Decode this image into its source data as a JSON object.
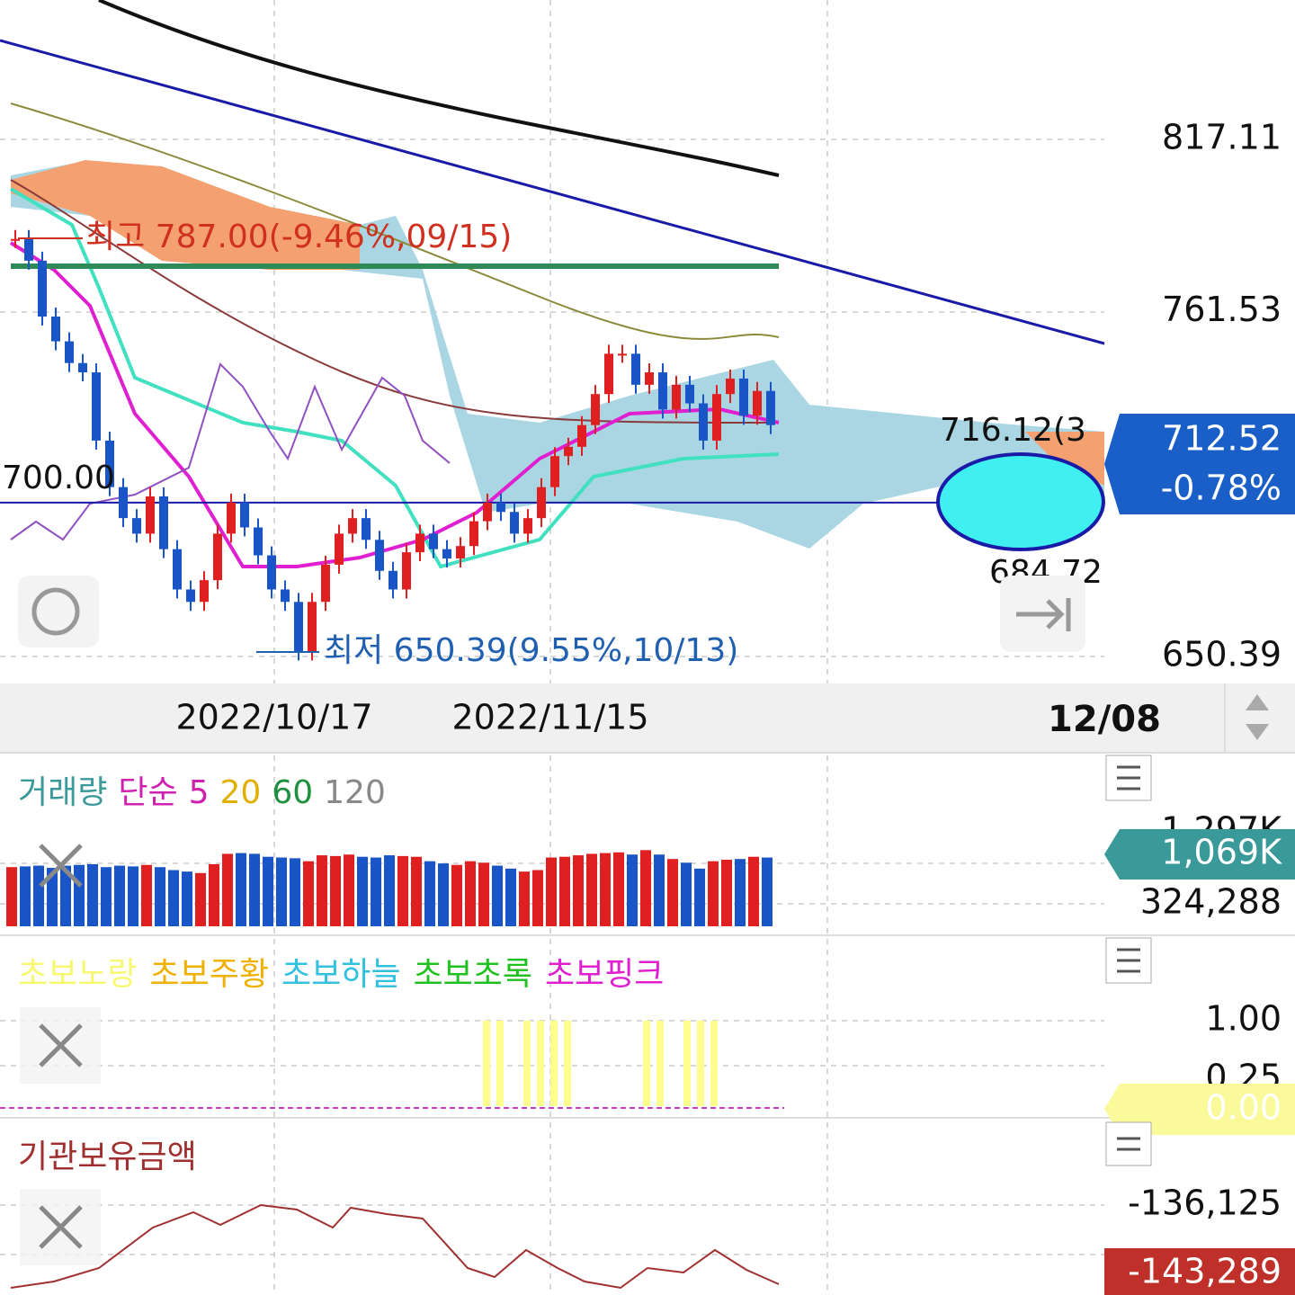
{
  "price_panel": {
    "yticks": [
      817.11,
      761.53,
      650.39
    ],
    "level_line": {
      "value": 700,
      "label": "700.00"
    },
    "high_note": "최고 787.00(-9.46%,09/15)",
    "low_note": "최저 650.39(9.55%,10/13)",
    "cloud_top_label": "716.12(3",
    "cloud_bottom_label": "684.72",
    "current": {
      "value": 712.52,
      "label": "712.52",
      "change": "-0.78%"
    },
    "closes": [
      785,
      778,
      760,
      752,
      745,
      742,
      720,
      705,
      695,
      690,
      702,
      685,
      672,
      668,
      675,
      690,
      700,
      692,
      683,
      672,
      668,
      652,
      668,
      680,
      690,
      695,
      688,
      678,
      672,
      684,
      690,
      685,
      682,
      686,
      694,
      700,
      697,
      690,
      695,
      705,
      715,
      718,
      725,
      735,
      748,
      748,
      738,
      742,
      730,
      738,
      732,
      720,
      735,
      740,
      728,
      736,
      725
    ]
  },
  "date_axis": [
    "2022/10/17",
    "2022/11/15",
    "12/08"
  ],
  "volume_panel": {
    "title": [
      "거래량",
      "단순",
      "5",
      "20",
      "60",
      "120"
    ],
    "ylim": [
      20000,
      1297000
    ],
    "hidden_tick": "1,297K",
    "tick": {
      "value": 324288,
      "label": "324,288"
    },
    "current": "1,069K",
    "values": [
      820000,
      830000,
      840000,
      810000,
      840000,
      850000,
      860000,
      820000,
      840000,
      830000,
      850000,
      820000,
      780000,
      760000,
      740000,
      860000,
      1000000,
      1010000,
      1000000,
      960000,
      950000,
      940000,
      900000,
      980000,
      970000,
      990000,
      960000,
      950000,
      980000,
      970000,
      960000,
      900000,
      870000,
      850000,
      900000,
      880000,
      840000,
      800000,
      760000,
      780000,
      950000,
      960000,
      980000,
      1000000,
      1010000,
      1020000,
      990000,
      1050000,
      990000,
      930000,
      880000,
      800000,
      900000,
      920000,
      930000,
      960000,
      950000
    ]
  },
  "signal_panel": {
    "title": [
      "초보노랑",
      "초보주황",
      "초보하늘",
      "초보초록",
      "초보핑크"
    ],
    "ticks": [
      "1.00",
      "0.25",
      "0.00"
    ]
  },
  "inst_panel": {
    "title": "기관보유금액",
    "ticks": [
      "-136,125"
    ],
    "current": "-143,289"
  }
}
